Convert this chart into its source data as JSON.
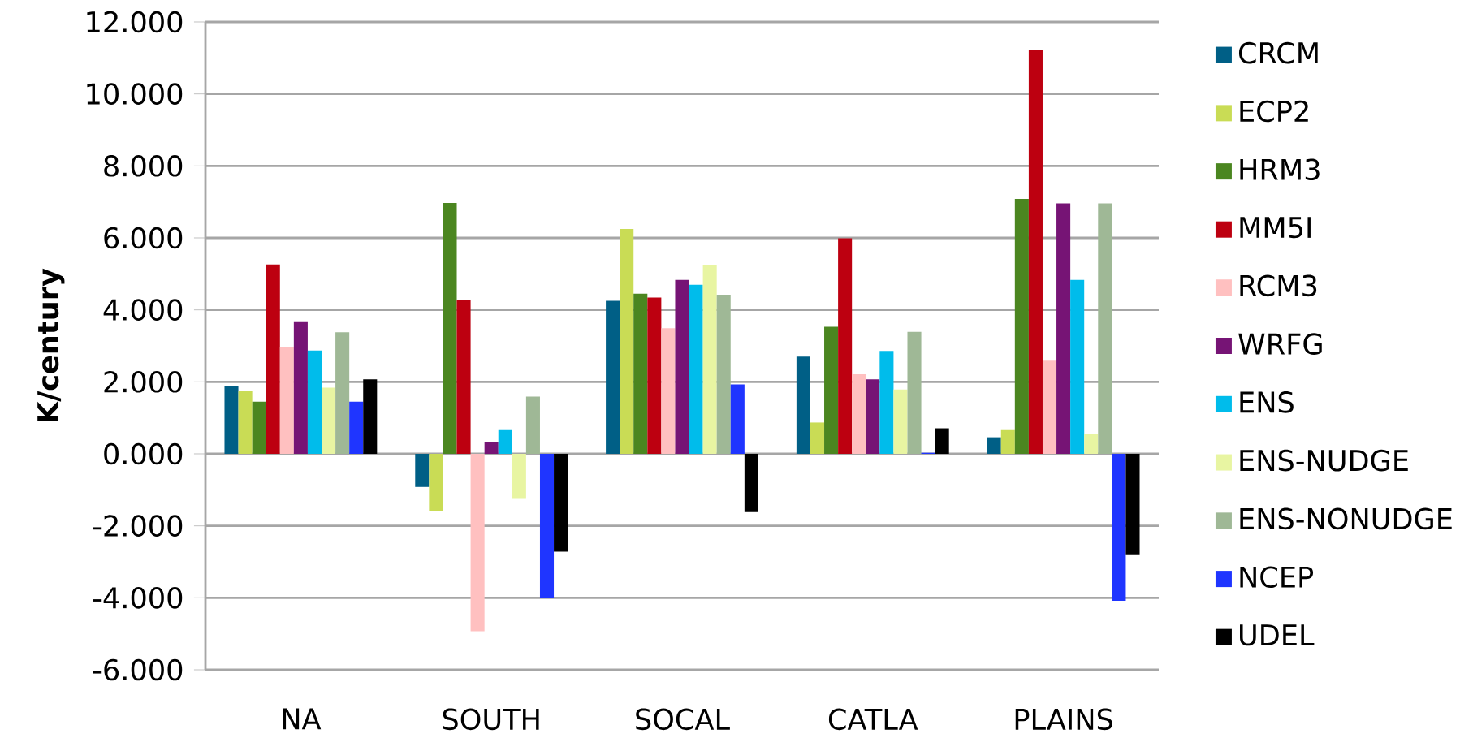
{
  "chart_data": {
    "type": "bar",
    "ylabel": "K/century",
    "categories": [
      "NA",
      "SOUTH",
      "SOCAL",
      "CATLA",
      "PLAINS"
    ],
    "series": [
      {
        "name": "CRCM",
        "color": "#005f86",
        "values": [
          1.88,
          -0.92,
          4.25,
          2.7,
          0.46
        ]
      },
      {
        "name": "ECP2",
        "color": "#c9dc55",
        "values": [
          1.75,
          -1.58,
          6.25,
          0.87,
          0.66
        ]
      },
      {
        "name": "HRM3",
        "color": "#4b8620",
        "values": [
          1.45,
          6.97,
          4.45,
          3.53,
          7.08
        ]
      },
      {
        "name": "MM5I",
        "color": "#bd0010",
        "values": [
          5.26,
          4.28,
          4.34,
          5.99,
          11.22
        ]
      },
      {
        "name": "RCM3",
        "color": "#ffc0c0",
        "values": [
          2.97,
          -4.93,
          3.49,
          2.21,
          2.59
        ]
      },
      {
        "name": "WRFG",
        "color": "#761475",
        "values": [
          3.68,
          0.33,
          4.83,
          2.07,
          6.96
        ]
      },
      {
        "name": "ENS",
        "color": "#00bceb",
        "values": [
          2.87,
          0.66,
          4.7,
          2.86,
          4.83
        ]
      },
      {
        "name": "ENS-NUDGE",
        "color": "#e8f5a2",
        "values": [
          1.84,
          -1.25,
          5.25,
          1.79,
          0.55
        ]
      },
      {
        "name": "ENS-NONUDGE",
        "color": "#9fb896",
        "values": [
          3.38,
          1.59,
          4.42,
          3.39,
          6.96
        ]
      },
      {
        "name": "NCEP",
        "color": "#1f35ff",
        "values": [
          1.45,
          -4.0,
          1.93,
          0.03,
          -4.08
        ]
      },
      {
        "name": "UDEL",
        "color": "#000000",
        "values": [
          2.07,
          -2.72,
          -1.62,
          0.71,
          -2.79
        ]
      }
    ],
    "ylim": [
      -6,
      12
    ],
    "yticks": [
      {
        "value": -6,
        "label": "-6.000"
      },
      {
        "value": -4,
        "label": "-4.000"
      },
      {
        "value": -2,
        "label": "-2.000"
      },
      {
        "value": 0,
        "label": "0.000"
      },
      {
        "value": 2,
        "label": "2.000"
      },
      {
        "value": 4,
        "label": "4.000"
      },
      {
        "value": 6,
        "label": "6.000"
      },
      {
        "value": 8,
        "label": "8.000"
      },
      {
        "value": 10,
        "label": "10.000"
      },
      {
        "value": 12,
        "label": "12.000"
      }
    ],
    "grid": "y",
    "legend": "right"
  }
}
